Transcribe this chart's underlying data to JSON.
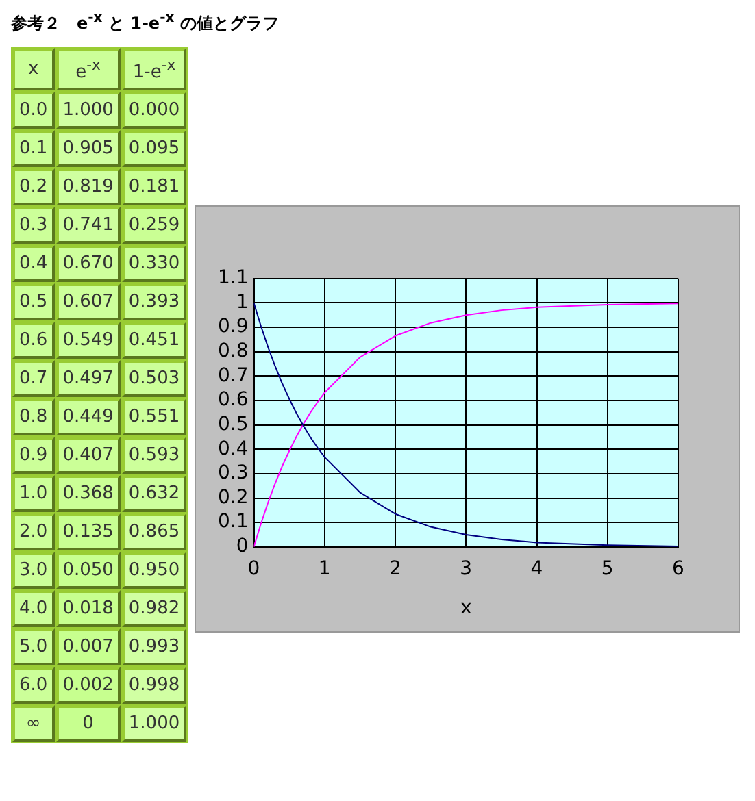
{
  "chart_data": [
    {
      "type": "heatmap",
      "title": "参考２　e$^{-x}$ と 1-e$^{-x}$ の値とグラフ",
      "ylabel": "x",
      "categories": [
        "e$^{-x}$",
        "1-e$^{-x}$"
      ],
      "y_categories": [
        "0.0",
        "0.1",
        "0.2",
        "0.3",
        "0.4",
        "0.5",
        "0.6",
        "0.7",
        "0.8",
        "0.9",
        "1.0",
        "2.0",
        "3.0",
        "4.0",
        "5.0",
        "6.0",
        "∞"
      ],
      "cells": [
        [
          1,
          0
        ],
        [
          0.905,
          0.095
        ],
        [
          0.819,
          0.181
        ],
        [
          0.741,
          0.259
        ],
        [
          0.67,
          0.33
        ],
        [
          0.607,
          0.393
        ],
        [
          0.549,
          0.451
        ],
        [
          0.497,
          0.503
        ],
        [
          0.449,
          0.551
        ],
        [
          0.407,
          0.593
        ],
        [
          0.368,
          0.632
        ],
        [
          0.135,
          0.865
        ],
        [
          0.05,
          0.95
        ],
        [
          0.018,
          0.982
        ],
        [
          0.007,
          0.993
        ],
        [
          0.002,
          0.998
        ],
        [
          0,
          1
        ]
      ],
      "cell_labels": [
        [
          "1.000",
          "0.000"
        ],
        [
          "0.905",
          "0.095"
        ],
        [
          "0.819",
          "0.181"
        ],
        [
          "0.741",
          "0.259"
        ],
        [
          "0.670",
          "0.330"
        ],
        [
          "0.607",
          "0.393"
        ],
        [
          "0.549",
          "0.451"
        ],
        [
          "0.497",
          "0.503"
        ],
        [
          "0.449",
          "0.551"
        ],
        [
          "0.407",
          "0.593"
        ],
        [
          "0.368",
          "0.632"
        ],
        [
          "0.135",
          "0.865"
        ],
        [
          "0.050",
          "0.950"
        ],
        [
          "0.018",
          "0.982"
        ],
        [
          "0.007",
          "0.993"
        ],
        [
          "0.002",
          "0.998"
        ],
        [
          "0",
          "1.000"
        ]
      ]
    },
    {
      "type": "line",
      "xlabel": "x",
      "x": [
        0,
        0.1,
        0.2,
        0.3,
        0.4,
        0.5,
        0.6,
        0.7,
        0.8,
        0.9,
        1,
        1.5,
        2,
        2.5,
        3,
        3.5,
        4,
        5,
        6
      ],
      "series": [
        {
          "color": "#000080",
          "values": [
            1,
            0.905,
            0.819,
            0.741,
            0.67,
            0.607,
            0.549,
            0.497,
            0.449,
            0.407,
            0.368,
            0.223,
            0.135,
            0.082,
            0.05,
            0.03,
            0.018,
            0.007,
            0.002
          ]
        },
        {
          "color": "#ff00ff",
          "values": [
            0,
            0.095,
            0.181,
            0.259,
            0.33,
            0.393,
            0.451,
            0.503,
            0.551,
            0.593,
            0.632,
            0.777,
            0.865,
            0.918,
            0.95,
            0.97,
            0.982,
            0.993,
            0.998
          ]
        }
      ],
      "xlim": [
        0,
        6
      ],
      "xticks": [
        0,
        1,
        2,
        3,
        4,
        5,
        6
      ],
      "ylim": [
        0,
        1.1
      ],
      "yticks": [
        0,
        0.1,
        0.2,
        0.3,
        0.4,
        0.5,
        0.6,
        0.7,
        0.8,
        0.9,
        1,
        1.1
      ],
      "grid": true,
      "marker": "none",
      "line_style": "solid"
    }
  ]
}
